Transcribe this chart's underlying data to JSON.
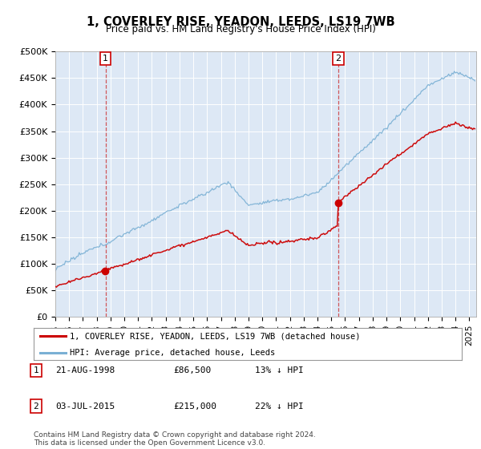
{
  "title": "1, COVERLEY RISE, YEADON, LEEDS, LS19 7WB",
  "subtitle": "Price paid vs. HM Land Registry's House Price Index (HPI)",
  "plot_bg_color": "#dde8f5",
  "ylim": [
    0,
    500000
  ],
  "yticks": [
    0,
    50000,
    100000,
    150000,
    200000,
    250000,
    300000,
    350000,
    400000,
    450000,
    500000
  ],
  "ytick_labels": [
    "£0",
    "£50K",
    "£100K",
    "£150K",
    "£200K",
    "£250K",
    "£300K",
    "£350K",
    "£400K",
    "£450K",
    "£500K"
  ],
  "xmin": 1995.0,
  "xmax": 2025.5,
  "transaction1_date": 1998.64,
  "transaction1_price": 86500,
  "transaction2_date": 2015.5,
  "transaction2_price": 215000,
  "legend_line1": "1, COVERLEY RISE, YEADON, LEEDS, LS19 7WB (detached house)",
  "legend_line2": "HPI: Average price, detached house, Leeds",
  "legend_line1_color": "#cc0000",
  "legend_line2_color": "#7ab0d4",
  "table_row1": [
    "1",
    "21-AUG-1998",
    "£86,500",
    "13% ↓ HPI"
  ],
  "table_row2": [
    "2",
    "03-JUL-2015",
    "£215,000",
    "22% ↓ HPI"
  ],
  "footer": "Contains HM Land Registry data © Crown copyright and database right 2024.\nThis data is licensed under the Open Government Licence v3.0."
}
